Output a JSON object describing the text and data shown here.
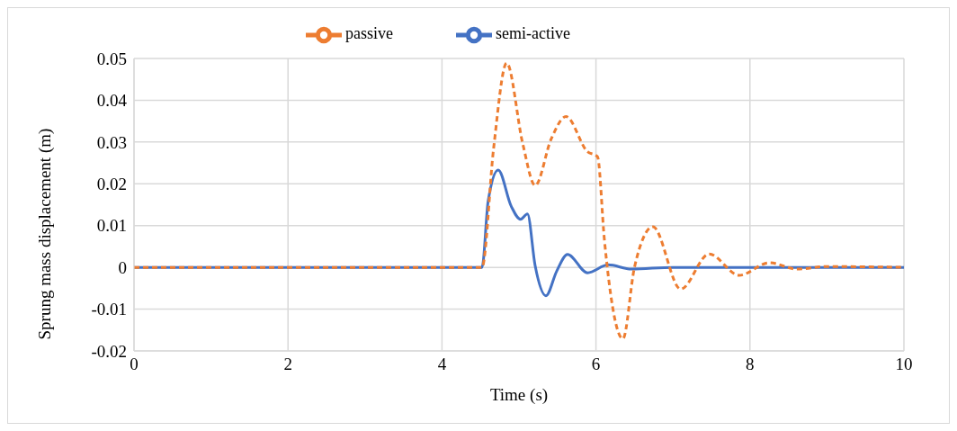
{
  "chart_data": {
    "type": "line",
    "xlabel": "Time (s)",
    "ylabel": "Sprung mass  displacement (m)",
    "xlim": [
      0,
      10
    ],
    "xticks": [
      0,
      2,
      4,
      6,
      8,
      10
    ],
    "ylim": [
      -0.02,
      0.05
    ],
    "yticks": [
      -0.02,
      -0.01,
      0,
      0.01,
      0.02,
      0.03,
      0.04,
      0.05
    ],
    "grid": true,
    "legend": "top",
    "marker": "none",
    "series": [
      {
        "name": "semi-active",
        "color": "#4472c4",
        "line_style": "solid",
        "x": [
          0,
          4.52,
          4.6,
          4.73,
          4.9,
          5.02,
          5.11,
          5.21,
          5.35,
          5.49,
          5.63,
          5.89,
          6.16,
          6.46,
          7.0,
          10
        ],
        "values": [
          0,
          0,
          0.0159,
          0.0233,
          0.0146,
          0.0115,
          0.0128,
          0.0004,
          -0.0068,
          -0.0009,
          0.0031,
          -0.0013,
          0.0006,
          -0.0004,
          0,
          0
        ]
      },
      {
        "name": "passive",
        "color": "#ed7d31",
        "line_style": "dashed",
        "x": [
          0,
          4.52,
          4.67,
          4.84,
          5.05,
          5.21,
          5.42,
          5.61,
          5.89,
          6.02,
          6.11,
          6.35,
          6.5,
          6.74,
          7.1,
          7.47,
          7.86,
          8.25,
          8.61,
          9.0,
          10
        ],
        "values": [
          0,
          0,
          0.0284,
          0.0489,
          0.0295,
          0.0196,
          0.0308,
          0.0361,
          0.0277,
          0.0265,
          0.0065,
          -0.0171,
          0,
          0.0097,
          -0.0052,
          0.0032,
          -0.0019,
          0.0011,
          -0.0004,
          0.0002,
          0
        ]
      }
    ]
  }
}
